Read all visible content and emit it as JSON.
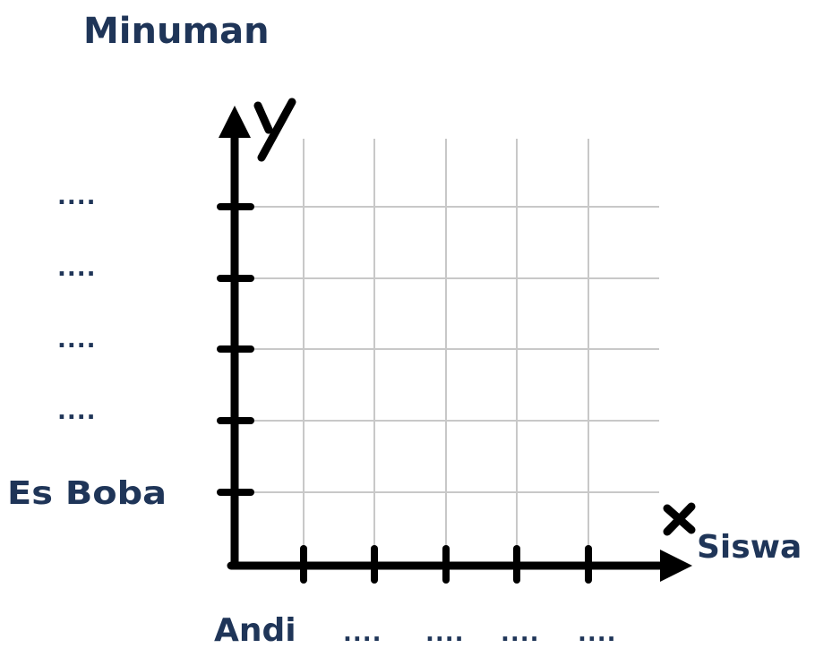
{
  "title": "Minuman",
  "x_axis": {
    "letter": "x",
    "name": "Siswa",
    "labels": [
      "Andi",
      "....",
      "....",
      "....",
      "...."
    ]
  },
  "y_axis": {
    "letter": "y",
    "labels": [
      "Es Boba",
      "....",
      "....",
      "....",
      "...."
    ]
  },
  "colors": {
    "label": "#1f3558",
    "axis": "#000000",
    "grid": "#c8c8c8"
  }
}
